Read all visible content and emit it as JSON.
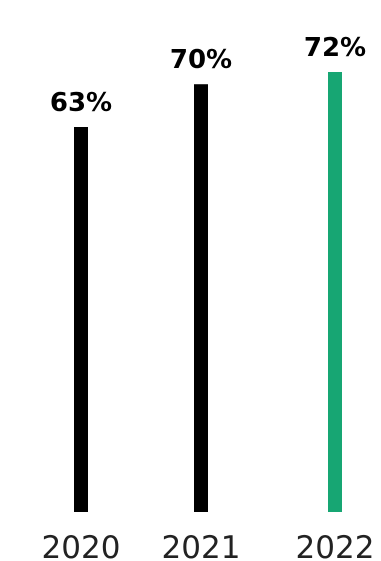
{
  "chart_data": {
    "type": "bar",
    "categories": [
      "2020",
      "2021",
      "2022"
    ],
    "values": [
      63,
      70,
      72
    ],
    "value_labels": [
      "63%",
      "70%",
      "72%"
    ],
    "unit": "%",
    "title": "",
    "xlabel": "",
    "ylabel": "",
    "ylim": [
      0,
      72
    ],
    "grid": false,
    "legend": "none",
    "colors": [
      "#000000",
      "#000000",
      "#17a673"
    ]
  }
}
